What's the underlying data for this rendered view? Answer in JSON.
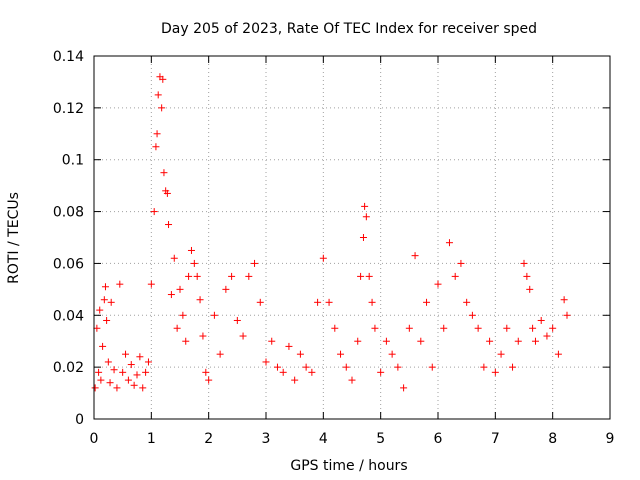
{
  "chart_data": {
    "type": "scatter",
    "title": "Day 205 of 2023, Rate Of TEC Index for receiver sped",
    "xlabel": "GPS time / hours",
    "ylabel": "ROTI / TECUs",
    "xlim": [
      0,
      9
    ],
    "ylim": [
      0,
      0.14
    ],
    "xticks": [
      0,
      1,
      2,
      3,
      4,
      5,
      6,
      7,
      8,
      9
    ],
    "yticks": [
      0,
      0.02,
      0.04,
      0.06,
      0.08,
      0.1,
      0.12,
      0.14
    ],
    "ytick_labels": [
      "0",
      "0.02",
      "0.04",
      "0.06",
      "0.08",
      "0.1",
      "0.12",
      "0.14"
    ],
    "grid": true,
    "marker": "+",
    "marker_color": "#ff0000",
    "series": [
      {
        "x": [
          0.02,
          0.05,
          0.08,
          0.1,
          0.12,
          0.15,
          0.18,
          0.2,
          0.22,
          0.25,
          0.28,
          0.3,
          0.35,
          0.4,
          0.45,
          0.5,
          0.55,
          0.6,
          0.65,
          0.7,
          0.75,
          0.8,
          0.85,
          0.9,
          0.95,
          1.0,
          1.05,
          1.08,
          1.1,
          1.12,
          1.15,
          1.18,
          1.2,
          1.22,
          1.25,
          1.28,
          1.3,
          1.35,
          1.4,
          1.45,
          1.5,
          1.55,
          1.6,
          1.65,
          1.7,
          1.75,
          1.8,
          1.85,
          1.9,
          1.95,
          2.0,
          2.1,
          2.2,
          2.3,
          2.4,
          2.5,
          2.6,
          2.7,
          2.8,
          2.9,
          3.0,
          3.1,
          3.2,
          3.3,
          3.4,
          3.5,
          3.6,
          3.7,
          3.8,
          3.9,
          4.0,
          4.1,
          4.2,
          4.3,
          4.4,
          4.5,
          4.6,
          4.65,
          4.7,
          4.72,
          4.75,
          4.8,
          4.85,
          4.9,
          5.0,
          5.1,
          5.2,
          5.3,
          5.4,
          5.5,
          5.6,
          5.7,
          5.8,
          5.9,
          6.0,
          6.1,
          6.2,
          6.3,
          6.4,
          6.5,
          6.6,
          6.7,
          6.8,
          6.9,
          7.0,
          7.1,
          7.2,
          7.3,
          7.4,
          7.5,
          7.55,
          7.6,
          7.65,
          7.7,
          7.8,
          7.9,
          8.0,
          8.1,
          8.2,
          8.25
        ],
        "y": [
          0.012,
          0.035,
          0.018,
          0.042,
          0.015,
          0.028,
          0.046,
          0.051,
          0.038,
          0.022,
          0.014,
          0.045,
          0.019,
          0.012,
          0.052,
          0.018,
          0.025,
          0.015,
          0.021,
          0.013,
          0.017,
          0.024,
          0.012,
          0.018,
          0.022,
          0.052,
          0.08,
          0.105,
          0.11,
          0.125,
          0.132,
          0.12,
          0.131,
          0.095,
          0.088,
          0.087,
          0.075,
          0.048,
          0.062,
          0.035,
          0.05,
          0.04,
          0.03,
          0.055,
          0.065,
          0.06,
          0.055,
          0.046,
          0.032,
          0.018,
          0.015,
          0.04,
          0.025,
          0.05,
          0.055,
          0.038,
          0.032,
          0.055,
          0.06,
          0.045,
          0.022,
          0.03,
          0.02,
          0.018,
          0.028,
          0.015,
          0.025,
          0.02,
          0.018,
          0.045,
          0.062,
          0.045,
          0.035,
          0.025,
          0.02,
          0.015,
          0.03,
          0.055,
          0.07,
          0.082,
          0.078,
          0.055,
          0.045,
          0.035,
          0.018,
          0.03,
          0.025,
          0.02,
          0.012,
          0.035,
          0.063,
          0.03,
          0.045,
          0.02,
          0.052,
          0.035,
          0.068,
          0.055,
          0.06,
          0.045,
          0.04,
          0.035,
          0.02,
          0.03,
          0.018,
          0.025,
          0.035,
          0.02,
          0.03,
          0.06,
          0.055,
          0.05,
          0.035,
          0.03,
          0.038,
          0.032,
          0.035,
          0.025,
          0.046,
          0.04
        ]
      }
    ]
  }
}
